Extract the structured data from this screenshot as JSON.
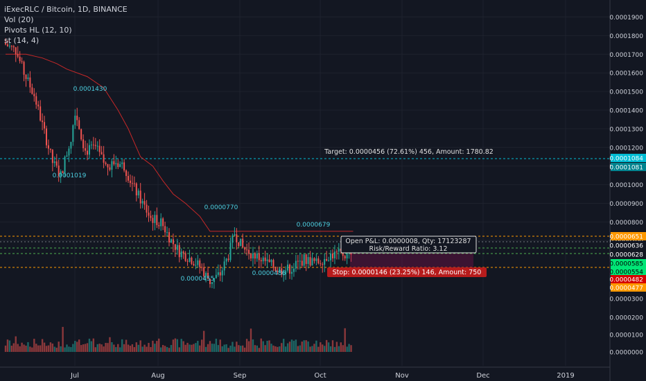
{
  "legend": {
    "symbol": "iExecRLC / Bitcoin, 1D, BINANCE",
    "vol": "Vol (20)",
    "pivots": "Pivots HL (12, 10)",
    "st": "st (14, 4)"
  },
  "colors": {
    "background": "#131722",
    "up": "#26a69a",
    "down": "#ef5350",
    "supertrend": "#c62828",
    "target_line": "#00bcd4",
    "orange_line": "#ff9800",
    "green_line": "#4caf50"
  },
  "chart_data": {
    "type": "candlestick",
    "y_axis": {
      "min": 0,
      "max": 0.000195,
      "price_ticks": [
        "0.0001900",
        "0.0001800",
        "0.0001700",
        "0.0001600",
        "0.0001500",
        "0.0001400",
        "0.0001300",
        "0.0001200",
        "0.0001100",
        "0.0001000",
        "0.0000900",
        "0.0000800",
        "0.0000700"
      ],
      "volume_ticks": [
        "0.0000300",
        "0.0000200",
        "0.0000100",
        "0.0000000"
      ]
    },
    "x_axis": {
      "labels": [
        "Jul",
        "Aug",
        "Sep",
        "Oct",
        "Nov",
        "Dec",
        "2019"
      ]
    },
    "pivot_labels": [
      "0.0001430",
      "0.0001019",
      "0.0000770",
      "0.0000679",
      "0.0000455",
      "0.0000486"
    ],
    "price_tags": [
      {
        "text": "0.0001084",
        "color": "#00bcd4"
      },
      {
        "text": "0.0001081",
        "color": "#00838f"
      },
      {
        "text": "0.0000651",
        "color": "#ff9800"
      },
      {
        "text": "0.0000636",
        "color": "#131722"
      },
      {
        "text": "0.0000628",
        "color": "#131722"
      },
      {
        "text": "0.0000585",
        "color": "#00e676"
      },
      {
        "text": "0.0000554",
        "color": "#00e676"
      },
      {
        "text": "0.0000482",
        "color": "#d50000"
      },
      {
        "text": "0.0000477",
        "color": "#ff9800"
      }
    ],
    "position": {
      "target_text": "Target: 0.0000456 (72.61%) 456, Amount: 1780.82",
      "pnl_text": "Open P&L: 0.0000008, Qty: 17123287",
      "rr_text": "Risk/Reward Ratio: 3.12",
      "stop_text": "Stop: 0.0000146 (23.25%) 146, Amount: 750"
    }
  }
}
